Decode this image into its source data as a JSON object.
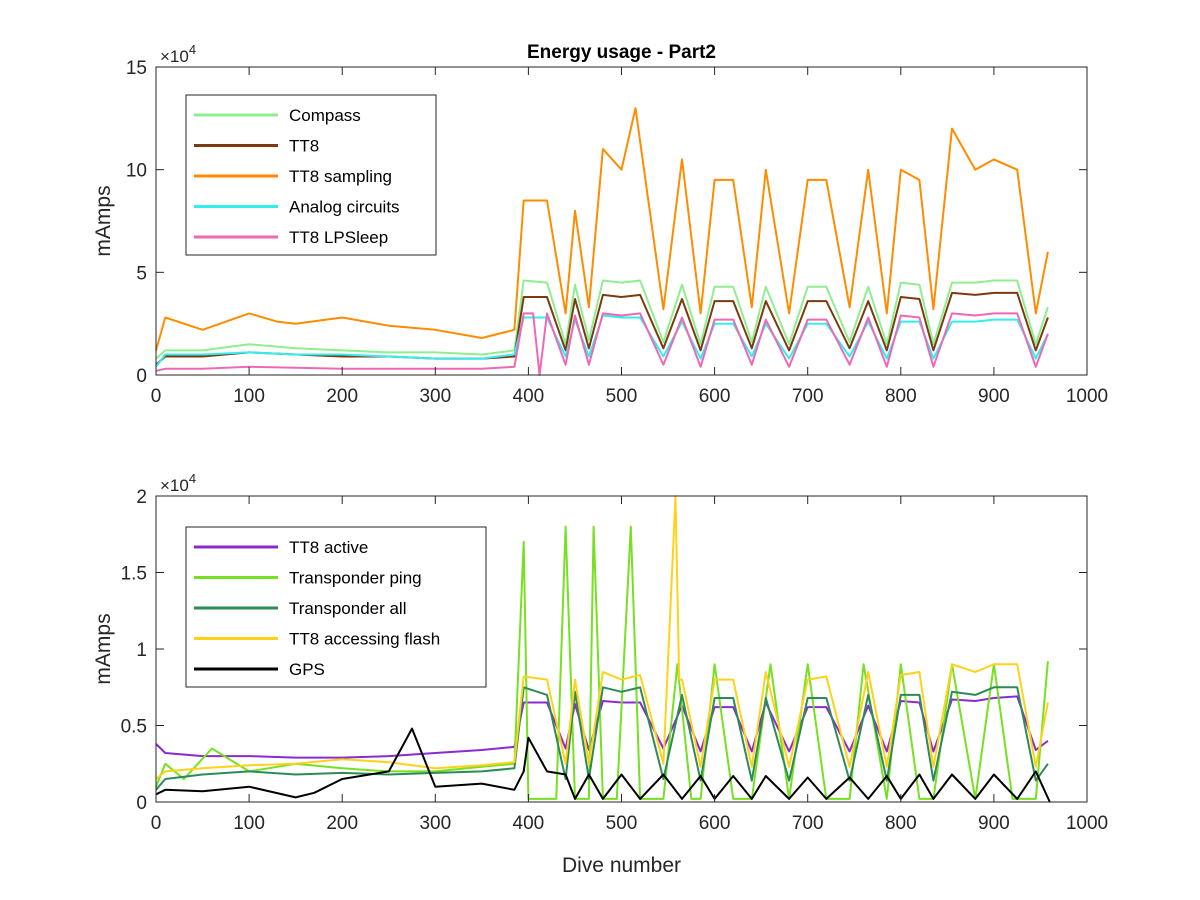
{
  "chart_data": [
    {
      "type": "line",
      "title": "Energy usage - Part2",
      "xlabel": "",
      "ylabel": "mAmps",
      "xlim": [
        0,
        1000
      ],
      "ylim": [
        0,
        150000
      ],
      "x_ticks": [
        "0",
        "100",
        "200",
        "300",
        "400",
        "500",
        "600",
        "700",
        "800",
        "900",
        "1000"
      ],
      "y_ticks": [
        "0",
        "5",
        "10",
        "15"
      ],
      "y_exponent_base": "×10",
      "y_exponent_power": "4",
      "legend_position": "top-left",
      "series": [
        {
          "name": "Compass",
          "color": "#90ee90",
          "x": [
            0,
            10,
            50,
            100,
            150,
            200,
            250,
            300,
            350,
            385,
            395,
            420,
            440,
            450,
            465,
            480,
            500,
            520,
            545,
            565,
            585,
            600,
            620,
            640,
            655,
            680,
            700,
            720,
            745,
            765,
            785,
            800,
            820,
            835,
            855,
            880,
            900,
            925,
            945,
            958
          ],
          "y": [
            8000,
            12000,
            12000,
            15000,
            13000,
            12000,
            11000,
            11000,
            10000,
            12000,
            46000,
            45000,
            15000,
            44000,
            17000,
            46000,
            45000,
            46000,
            16000,
            44000,
            15000,
            43000,
            43000,
            16000,
            43000,
            15000,
            43000,
            43000,
            16000,
            43000,
            15000,
            45000,
            44000,
            15000,
            45000,
            45000,
            46000,
            46000,
            15000,
            33000
          ]
        },
        {
          "name": "TT8",
          "color": "#7a3b10",
          "x": [
            0,
            10,
            50,
            100,
            150,
            200,
            250,
            300,
            350,
            385,
            395,
            420,
            440,
            450,
            465,
            480,
            500,
            520,
            545,
            565,
            585,
            600,
            620,
            640,
            655,
            680,
            700,
            720,
            745,
            765,
            785,
            800,
            820,
            835,
            855,
            880,
            900,
            925,
            945,
            958
          ],
          "y": [
            5000,
            9000,
            9000,
            11000,
            10000,
            9000,
            9000,
            8000,
            8000,
            9000,
            38000,
            38000,
            12000,
            37000,
            13000,
            39000,
            38000,
            39000,
            13000,
            37000,
            12000,
            36000,
            36000,
            13000,
            36000,
            12000,
            36000,
            36000,
            13000,
            36000,
            12000,
            38000,
            37000,
            12000,
            40000,
            39000,
            40000,
            40000,
            12000,
            28000
          ]
        },
        {
          "name": "TT8 sampling",
          "color": "#ff8c00",
          "x": [
            0,
            10,
            50,
            100,
            130,
            150,
            200,
            250,
            300,
            350,
            385,
            395,
            420,
            440,
            450,
            465,
            480,
            500,
            515,
            545,
            565,
            585,
            600,
            620,
            640,
            655,
            680,
            700,
            720,
            745,
            765,
            785,
            800,
            820,
            835,
            855,
            880,
            900,
            925,
            945,
            958
          ],
          "y": [
            12000,
            28000,
            22000,
            30000,
            26000,
            25000,
            28000,
            24000,
            22000,
            18000,
            22000,
            85000,
            85000,
            30000,
            80000,
            33000,
            110000,
            100000,
            130000,
            32000,
            105000,
            30000,
            95000,
            95000,
            33000,
            100000,
            30000,
            95000,
            95000,
            33000,
            100000,
            30000,
            100000,
            95000,
            32000,
            120000,
            100000,
            105000,
            100000,
            30000,
            60000
          ]
        },
        {
          "name": "Analog circuits",
          "color": "#33eeee",
          "x": [
            0,
            10,
            50,
            100,
            150,
            200,
            250,
            300,
            350,
            385,
            395,
            420,
            440,
            450,
            465,
            480,
            500,
            520,
            545,
            565,
            585,
            600,
            620,
            640,
            655,
            680,
            700,
            720,
            745,
            765,
            785,
            800,
            820,
            835,
            855,
            880,
            900,
            925,
            945,
            958
          ],
          "y": [
            4000,
            10000,
            10000,
            11000,
            10000,
            10000,
            9000,
            8000,
            8000,
            10000,
            28000,
            28000,
            9000,
            27000,
            9000,
            29000,
            28000,
            28000,
            9000,
            26000,
            8000,
            25000,
            25000,
            9000,
            25000,
            8000,
            25000,
            25000,
            9000,
            26000,
            8000,
            26000,
            26000,
            8000,
            26000,
            26000,
            27000,
            27000,
            8000,
            20000
          ]
        },
        {
          "name": "TT8 LPSleep",
          "color": "#ee69b4",
          "x": [
            0,
            10,
            50,
            100,
            150,
            200,
            250,
            300,
            350,
            385,
            395,
            405,
            412,
            420,
            440,
            450,
            465,
            480,
            500,
            520,
            545,
            565,
            585,
            600,
            620,
            640,
            655,
            680,
            700,
            720,
            745,
            765,
            785,
            800,
            820,
            835,
            855,
            880,
            900,
            925,
            945,
            958
          ],
          "y": [
            2000,
            3000,
            3000,
            4000,
            3500,
            3000,
            3000,
            3000,
            3000,
            4000,
            30000,
            30000,
            0,
            30000,
            5000,
            29000,
            5000,
            30000,
            29000,
            30000,
            5000,
            28000,
            4000,
            27000,
            27000,
            5000,
            27000,
            4000,
            27000,
            27000,
            5000,
            28000,
            4000,
            29000,
            28000,
            4000,
            30000,
            29000,
            30000,
            30000,
            4000,
            20000
          ]
        }
      ]
    },
    {
      "type": "line",
      "title": "",
      "xlabel": "Dive number",
      "ylabel": "mAmps",
      "xlim": [
        0,
        1000
      ],
      "ylim": [
        0,
        20000
      ],
      "x_ticks": [
        "0",
        "100",
        "200",
        "300",
        "400",
        "500",
        "600",
        "700",
        "800",
        "900",
        "1000"
      ],
      "y_ticks": [
        "0",
        "0.5",
        "1",
        "1.5",
        "2"
      ],
      "y_exponent_base": "×10",
      "y_exponent_power": "4",
      "legend_position": "top-left",
      "series": [
        {
          "name": "TT8 active",
          "color": "#8a2bd2",
          "x": [
            0,
            10,
            50,
            100,
            150,
            200,
            250,
            300,
            350,
            385,
            395,
            420,
            440,
            450,
            465,
            480,
            500,
            520,
            545,
            565,
            585,
            600,
            620,
            640,
            655,
            680,
            700,
            720,
            745,
            765,
            785,
            800,
            820,
            835,
            855,
            880,
            900,
            925,
            945,
            958
          ],
          "y": [
            3800,
            3200,
            3000,
            3000,
            2900,
            2900,
            3000,
            3200,
            3400,
            3600,
            6500,
            6500,
            3500,
            6400,
            3400,
            6600,
            6500,
            6500,
            3500,
            6300,
            3300,
            6200,
            6200,
            3300,
            6500,
            3300,
            6200,
            6200,
            3300,
            6300,
            3300,
            6600,
            6500,
            3300,
            6700,
            6600,
            6800,
            6900,
            3400,
            4000
          ]
        },
        {
          "name": "Transponder ping",
          "color": "#77e022",
          "x": [
            0,
            10,
            30,
            60,
            100,
            150,
            200,
            250,
            300,
            350,
            385,
            395,
            400,
            410,
            420,
            430,
            440,
            450,
            465,
            470,
            480,
            495,
            510,
            520,
            545,
            560,
            575,
            585,
            600,
            620,
            640,
            660,
            680,
            700,
            720,
            745,
            760,
            785,
            800,
            820,
            835,
            855,
            880,
            900,
            920,
            945,
            958
          ],
          "y": [
            1000,
            2500,
            1500,
            3500,
            2000,
            2500,
            2200,
            2000,
            2000,
            2300,
            2500,
            17000,
            200,
            200,
            200,
            200,
            18000,
            200,
            200,
            18000,
            200,
            200,
            18000,
            200,
            200,
            9000,
            200,
            200,
            9000,
            200,
            200,
            9000,
            200,
            9000,
            200,
            200,
            9000,
            200,
            9000,
            200,
            200,
            9000,
            200,
            9000,
            200,
            200,
            9200
          ]
        },
        {
          "name": "Transponder all",
          "color": "#2e8b57",
          "x": [
            0,
            10,
            50,
            100,
            150,
            200,
            250,
            300,
            350,
            385,
            395,
            420,
            440,
            450,
            465,
            480,
            500,
            520,
            545,
            565,
            585,
            600,
            620,
            640,
            655,
            680,
            700,
            720,
            745,
            765,
            785,
            800,
            820,
            835,
            855,
            880,
            900,
            925,
            945,
            958
          ],
          "y": [
            800,
            1500,
            1800,
            2000,
            1800,
            1900,
            1800,
            1900,
            2000,
            2200,
            7500,
            7000,
            1500,
            7200,
            1500,
            7500,
            7200,
            7500,
            1500,
            7000,
            1400,
            6800,
            6800,
            1400,
            6800,
            1400,
            6800,
            6800,
            1400,
            7000,
            1400,
            7000,
            7000,
            1400,
            7200,
            7000,
            7500,
            7500,
            1400,
            2500
          ]
        },
        {
          "name": "TT8 accessing flash",
          "color": "#ffd21a",
          "x": [
            0,
            10,
            50,
            100,
            150,
            200,
            250,
            300,
            350,
            385,
            395,
            420,
            440,
            450,
            465,
            480,
            500,
            520,
            545,
            558,
            562,
            565,
            585,
            600,
            620,
            640,
            655,
            680,
            700,
            720,
            745,
            765,
            785,
            800,
            820,
            835,
            855,
            880,
            900,
            925,
            945,
            958
          ],
          "y": [
            1500,
            2000,
            2200,
            2400,
            2500,
            2800,
            2600,
            2200,
            2400,
            2600,
            8200,
            8000,
            2500,
            8000,
            2500,
            8500,
            8000,
            8300,
            2500,
            20000,
            8000,
            8000,
            2300,
            8000,
            8000,
            2300,
            8500,
            2300,
            8000,
            8200,
            2300,
            8500,
            2300,
            8300,
            8500,
            2300,
            9000,
            8500,
            9000,
            9000,
            2300,
            6500
          ]
        },
        {
          "name": "GPS",
          "color": "#000000",
          "x": [
            0,
            10,
            50,
            100,
            150,
            170,
            200,
            250,
            275,
            300,
            350,
            385,
            395,
            400,
            420,
            440,
            450,
            465,
            480,
            500,
            520,
            545,
            565,
            585,
            600,
            620,
            640,
            655,
            680,
            700,
            720,
            745,
            765,
            785,
            800,
            820,
            835,
            855,
            880,
            900,
            925,
            945,
            960
          ],
          "y": [
            500,
            800,
            700,
            1000,
            300,
            600,
            1500,
            2000,
            4800,
            1000,
            1200,
            800,
            2000,
            4200,
            2000,
            1800,
            200,
            1800,
            200,
            1800,
            200,
            1800,
            200,
            1700,
            200,
            1700,
            200,
            1700,
            200,
            1600,
            200,
            1600,
            200,
            1700,
            200,
            1800,
            200,
            1800,
            200,
            1800,
            200,
            2000,
            0
          ]
        }
      ]
    }
  ]
}
